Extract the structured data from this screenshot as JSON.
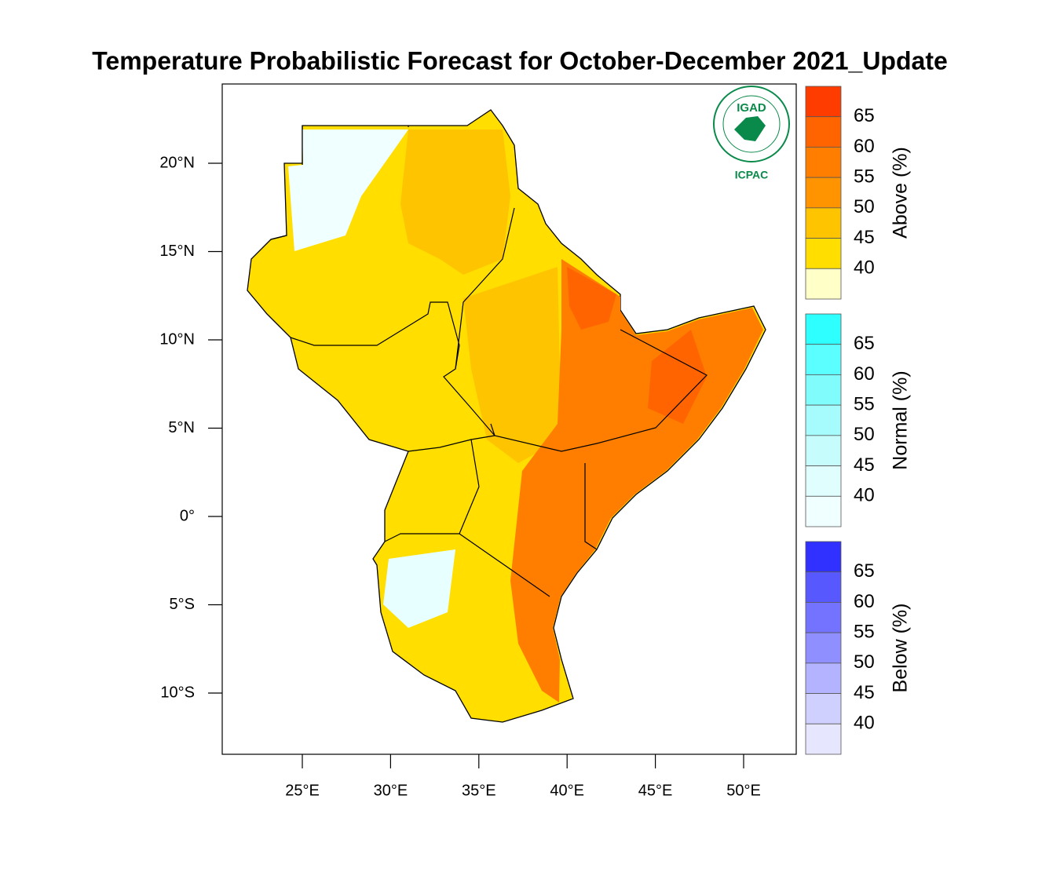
{
  "title": "Temperature Probabilistic Forecast for October-December 2021_Update",
  "map": {
    "yticks": [
      {
        "value": 20,
        "label": "20°N"
      },
      {
        "value": 15,
        "label": "15°N"
      },
      {
        "value": 10,
        "label": "10°N"
      },
      {
        "value": 5,
        "label": "5°N"
      },
      {
        "value": 0,
        "label": "0°"
      },
      {
        "value": -5,
        "label": "5°S"
      },
      {
        "value": -10,
        "label": "10°S"
      }
    ],
    "xticks": [
      {
        "value": 25,
        "label": "25°E"
      },
      {
        "value": 30,
        "label": "30°E"
      },
      {
        "value": 35,
        "label": "35°E"
      },
      {
        "value": 40,
        "label": "40°E"
      },
      {
        "value": 45,
        "label": "45°E"
      },
      {
        "value": 50,
        "label": "50°E"
      }
    ]
  },
  "logo": {
    "top": "IGAD",
    "bottom": "ICPAC"
  },
  "legends": [
    {
      "label": "Above (%)",
      "ticks": [
        65,
        60,
        55,
        50,
        45,
        40
      ],
      "colors": [
        "#ff3c00",
        "#ff6400",
        "#ff7e00",
        "#ff9300",
        "#ffc400",
        "#ffde00",
        "#ffffc8"
      ]
    },
    {
      "label": "Normal (%)",
      "ticks": [
        65,
        60,
        55,
        50,
        45,
        40
      ],
      "colors": [
        "#2effff",
        "#5cffff",
        "#80fcfc",
        "#a6fcfc",
        "#c6fcfc",
        "#e0fefe",
        "#f0ffff"
      ]
    },
    {
      "label": "Below (%)",
      "ticks": [
        65,
        60,
        55,
        50,
        45,
        40
      ],
      "colors": [
        "#3030ff",
        "#5858ff",
        "#7373ff",
        "#8f8fff",
        "#b3b3ff",
        "#d0d0ff",
        "#e6e6ff"
      ]
    }
  ]
}
